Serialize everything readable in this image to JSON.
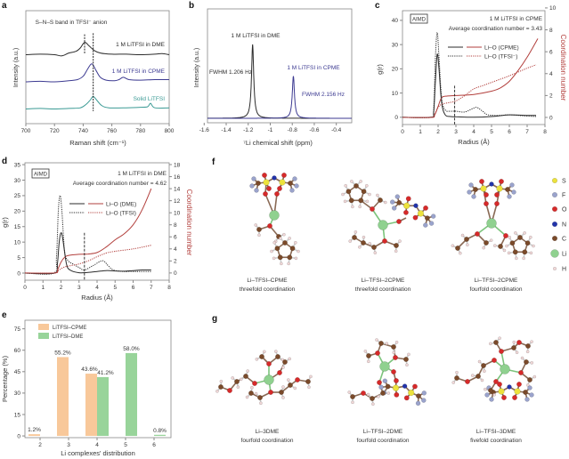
{
  "panel_letters": [
    "a",
    "b",
    "c",
    "d",
    "e",
    "f",
    "g"
  ],
  "colors": {
    "black": "#2b2b2b",
    "blue": "#3c3a91",
    "teal": "#3a9a94",
    "red": "#b23f3c",
    "cpme_bar": "#f8c89a",
    "dme_bar": "#98d49a"
  },
  "chart_data": [
    {
      "panel": "a",
      "type": "line",
      "xlabel": "Raman shift (cm⁻¹)",
      "ylabel": "Intensity (a.u.)",
      "xlim": [
        700,
        800
      ],
      "ylim": [
        0,
        1
      ],
      "xticks": [
        700,
        720,
        740,
        760,
        780,
        800
      ],
      "annotation": "S–N–S band in TFSI⁻ anion",
      "grid": false,
      "peak_markers": [
        741,
        747
      ],
      "series": [
        {
          "name": "1 M LiTFSI in DME",
          "color": "#2b2b2b",
          "x": [
            700,
            710,
            720,
            725,
            730,
            735,
            738,
            741,
            744,
            748,
            752,
            760,
            770,
            780,
            790,
            795,
            800
          ],
          "y": [
            0.61,
            0.615,
            0.61,
            0.6,
            0.625,
            0.64,
            0.67,
            0.72,
            0.69,
            0.645,
            0.625,
            0.615,
            0.615,
            0.61,
            0.615,
            0.62,
            0.61
          ]
        },
        {
          "name": "1 M LiTFSI in CPME",
          "color": "#3c3a91",
          "x": [
            700,
            710,
            720,
            730,
            736,
            740,
            743,
            746,
            749,
            752,
            756,
            762,
            765,
            768,
            772,
            780,
            790,
            800
          ],
          "y": [
            0.37,
            0.375,
            0.37,
            0.38,
            0.39,
            0.42,
            0.48,
            0.53,
            0.47,
            0.41,
            0.385,
            0.38,
            0.39,
            0.41,
            0.39,
            0.385,
            0.39,
            0.39
          ]
        },
        {
          "name": "Solid LiTFSI",
          "color": "#3a9a94",
          "x": [
            700,
            710,
            720,
            730,
            738,
            742,
            745,
            747,
            750,
            753,
            758,
            770,
            780,
            785,
            787,
            790,
            800
          ],
          "y": [
            0.13,
            0.135,
            0.13,
            0.135,
            0.14,
            0.17,
            0.21,
            0.24,
            0.2,
            0.16,
            0.14,
            0.14,
            0.145,
            0.15,
            0.18,
            0.14,
            0.14
          ]
        }
      ]
    },
    {
      "panel": "b",
      "type": "line",
      "xlabel": "⁷Li chemical shift (ppm)",
      "ylabel": "Intensity (a.u.)",
      "xlim": [
        -1.57,
        -0.26
      ],
      "ylim": [
        -0.06,
        1.48
      ],
      "xticks": [
        -1.6,
        -1.4,
        -1.2,
        -1.0,
        -0.8,
        -0.6,
        -0.4
      ],
      "grid": false,
      "series": [
        {
          "name": "1 M LiTFSI in DME",
          "color": "#2b2b2b",
          "peak_center": -1.16,
          "peak_height": 1.0,
          "fwhm_label": "FWHM 1.206 Hz"
        },
        {
          "name": "1 M LiTFSI in CPME",
          "color": "#3c3a91",
          "peak_center": -0.79,
          "peak_height": 0.57,
          "fwhm_label": "FWHM 2.156 Hz"
        }
      ]
    },
    {
      "panel": "c",
      "type": "line",
      "tag": "AIMD",
      "title": "1 M LiTFSI in CPME",
      "subtitle": "Average coordination number = 3.43",
      "xlabel": "Radius (Å)",
      "ylabel": "g(r)",
      "y2label": "Coordination number",
      "xlim": [
        0,
        8
      ],
      "ylim": [
        -3,
        44
      ],
      "y2lim": [
        -0.65,
        9.75
      ],
      "xticks": [
        0,
        1,
        2,
        3,
        4,
        5,
        6,
        7,
        8
      ],
      "yticks": [
        0,
        10,
        20,
        30,
        40
      ],
      "y2ticks": [
        0,
        2,
        4,
        6,
        8,
        10
      ],
      "cutoff_radius": 2.93,
      "legend_position": "upper-center",
      "grid": false,
      "series": [
        {
          "name": "Li–O (CPME)",
          "style": "solid",
          "r": [
            0,
            1.6,
            1.75,
            1.85,
            1.95,
            2.05,
            2.2,
            2.4,
            2.7,
            3,
            4,
            5,
            6,
            7,
            7.5
          ],
          "g": [
            0,
            0,
            2,
            15,
            26,
            20,
            6,
            1,
            0.3,
            0.2,
            0,
            0.3,
            1,
            0.8,
            0.8
          ],
          "cn_r": [
            0,
            1.6,
            1.8,
            2,
            2.2,
            2.5,
            3,
            4,
            5,
            5.5,
            6,
            6.5,
            7,
            7.6
          ],
          "cn": [
            0,
            0,
            0.2,
            1,
            1.8,
            1.95,
            2,
            2.1,
            2.4,
            2.7,
            3.3,
            4.3,
            5.5,
            7.2
          ]
        },
        {
          "name": "Li–O (TFSI⁻)",
          "style": "dotted",
          "r": [
            0,
            1.6,
            1.75,
            1.85,
            1.95,
            2.05,
            2.2,
            2.4,
            2.7,
            3,
            3.5,
            4,
            4.2,
            4.5,
            4.8,
            5.5,
            6,
            7,
            7.5
          ],
          "g": [
            0,
            0,
            3,
            25,
            35,
            25,
            8,
            3,
            2.5,
            2.5,
            2.2,
            3.8,
            4,
            2.5,
            1,
            0.8,
            1,
            0.5,
            0.3
          ],
          "cn_r": [
            0,
            1.6,
            1.8,
            2,
            2.2,
            2.6,
            3,
            3.5,
            4,
            4.5,
            5,
            6,
            7,
            7.5
          ],
          "cn": [
            0,
            0,
            0.3,
            0.9,
            1.2,
            1.35,
            1.5,
            2,
            2.6,
            2.9,
            3.2,
            3.8,
            4.5,
            4.8
          ]
        }
      ]
    },
    {
      "panel": "d",
      "type": "line",
      "tag": "AIMD",
      "title": "1 M LiTFSI in DME",
      "subtitle": "Average coordination number = 4.62",
      "xlabel": "Radius (Å)",
      "ylabel": "g(r)",
      "y2label": "Coordination number",
      "xlim": [
        0,
        8
      ],
      "ylim": [
        -2.3,
        35.6
      ],
      "y2lim": [
        -1.2,
        18.3
      ],
      "xticks": [
        0,
        1,
        2,
        3,
        4,
        5,
        6,
        7,
        8
      ],
      "yticks": [
        0,
        5,
        10,
        15,
        20,
        25,
        30,
        35
      ],
      "y2ticks": [
        0,
        2,
        4,
        6,
        8,
        10,
        12,
        14,
        16,
        18
      ],
      "cutoff_radius": 3.3,
      "legend_position": "upper-center",
      "grid": false,
      "series": [
        {
          "name": "Li–O (DME)",
          "style": "solid",
          "r": [
            0,
            1.65,
            1.8,
            1.9,
            2,
            2.1,
            2.3,
            2.5,
            3,
            3.5,
            4,
            4.5,
            5,
            5.5,
            6,
            6.5,
            7
          ],
          "g": [
            0,
            0,
            3,
            10,
            13,
            11,
            3,
            1,
            0.1,
            0.2,
            0.5,
            0.8,
            0.7,
            0.6,
            0.8,
            1,
            1
          ],
          "cn_r": [
            0,
            1.65,
            1.8,
            2,
            2.2,
            2.4,
            3,
            3.5,
            4,
            4.5,
            5,
            5.5,
            6,
            6.5,
            7
          ],
          "cn": [
            0,
            0,
            0.5,
            1.8,
            2.6,
            2.9,
            3.1,
            3.15,
            3.4,
            4.3,
            5.5,
            6.5,
            8,
            10.5,
            14
          ]
        },
        {
          "name": "Li–O (TFSI)",
          "style": "dotted",
          "r": [
            0,
            1.6,
            1.75,
            1.85,
            1.95,
            2.05,
            2.2,
            2.4,
            2.7,
            3,
            3.3,
            3.8,
            4.3,
            4.6,
            4.9,
            5.5,
            6,
            7
          ],
          "g": [
            0,
            0,
            5,
            20,
            25,
            20,
            7,
            4,
            2.8,
            1.8,
            1,
            2.5,
            4,
            2.5,
            1,
            0.5,
            0.5,
            0.5
          ],
          "cn_r": [
            0,
            1.6,
            1.8,
            2,
            2.2,
            2.5,
            3,
            3.5,
            4,
            4.5,
            5,
            6,
            7
          ],
          "cn": [
            0,
            0,
            0.3,
            0.7,
            1,
            1.2,
            1.5,
            2,
            2.7,
            3.3,
            3.6,
            4,
            4.6
          ]
        }
      ]
    },
    {
      "panel": "e",
      "type": "bar",
      "xlabel": "Li complexes' distribution",
      "ylabel": "Percentage (%)",
      "categories": [
        2,
        3,
        4,
        5,
        6
      ],
      "ylim": [
        -1.2,
        81
      ],
      "yticks": [
        0,
        15,
        30,
        45,
        60,
        75
      ],
      "legend_position": "top-left",
      "grid": false,
      "series": [
        {
          "name": "LiTFSI–CPME",
          "color": "#f8c89a",
          "values": [
            1.2,
            55.2,
            43.6,
            null,
            null
          ],
          "labels": [
            "1.2%",
            "55.2%",
            "43.6%",
            "",
            ""
          ]
        },
        {
          "name": "LiTFSI–DME",
          "color": "#98d49a",
          "values": [
            null,
            null,
            41.2,
            58.0,
            0.8
          ],
          "labels": [
            "",
            "",
            "41.2%",
            "58.0%",
            "0.8%"
          ]
        }
      ]
    }
  ],
  "molecules": {
    "f": [
      {
        "name": "Li–TFSI–CPME",
        "coordination": "threefold coordination"
      },
      {
        "name": "Li–TFSI–2CPME",
        "coordination": "threefold coordination"
      },
      {
        "name": "Li–TFSI–2CPME",
        "coordination": "fourfold coordination"
      }
    ],
    "g": [
      {
        "name": "Li–3DME",
        "coordination": "fourfold coordination"
      },
      {
        "name": "Li–TFSI–2DME",
        "coordination": "fourfold coordination"
      },
      {
        "name": "Li–TFSI–3DME",
        "coordination": "fivefold coordination"
      }
    ],
    "atom_legend": [
      {
        "label": "S",
        "color": "#ece23c"
      },
      {
        "label": "F",
        "color": "#9aa3cc"
      },
      {
        "label": "O",
        "color": "#d62a2a"
      },
      {
        "label": "N",
        "color": "#2233aa"
      },
      {
        "label": "C",
        "color": "#7a4a2a"
      },
      {
        "label": "Li",
        "color": "#8fd18f"
      },
      {
        "label": "H",
        "color": "#f1d8d8"
      }
    ]
  }
}
